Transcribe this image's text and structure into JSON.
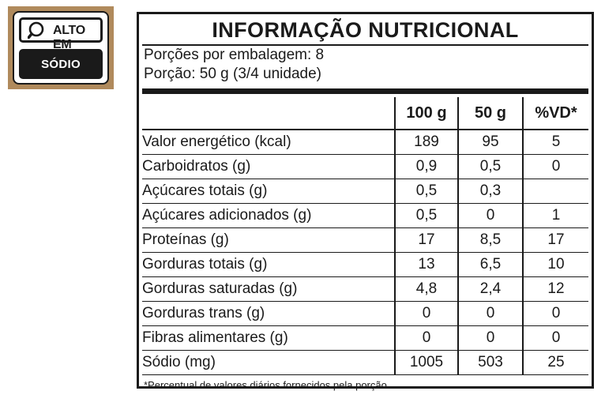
{
  "seal": {
    "top_text": "ALTO EM",
    "bottom_text": "SÓDIO",
    "frame_color": "#b08a5c",
    "icon": "magnifying-glass-icon"
  },
  "panel": {
    "title": "INFORMAÇÃO NUTRICIONAL",
    "servings_per_package": "Porções por embalagem: 8",
    "serving_size": "Porção: 50 g (3/4 unidade)",
    "columns": [
      "",
      "100 g",
      "50 g",
      "%VD*"
    ],
    "rows": [
      {
        "label": "Valor energético (kcal)",
        "per100": "189",
        "per50": "95",
        "vd": "5"
      },
      {
        "label": "Carboidratos (g)",
        "per100": "0,9",
        "per50": "0,5",
        "vd": "0"
      },
      {
        "label": "Açúcares totais (g)",
        "per100": "0,5",
        "per50": "0,3",
        "vd": ""
      },
      {
        "label": "Açúcares adicionados (g)",
        "per100": "0,5",
        "per50": "0",
        "vd": "1"
      },
      {
        "label": "Proteínas (g)",
        "per100": "17",
        "per50": "8,5",
        "vd": "17"
      },
      {
        "label": "Gorduras totais (g)",
        "per100": "13",
        "per50": "6,5",
        "vd": "10"
      },
      {
        "label": "Gorduras saturadas (g)",
        "per100": "4,8",
        "per50": "2,4",
        "vd": "12"
      },
      {
        "label": "Gorduras trans (g)",
        "per100": "0",
        "per50": "0",
        "vd": "0"
      },
      {
        "label": "Fibras alimentares (g)",
        "per100": "0",
        "per50": "0",
        "vd": "0"
      },
      {
        "label": "Sódio (mg)",
        "per100": "1005",
        "per50": "503",
        "vd": "25"
      }
    ],
    "footnote": "*Percentual de valores diários fornecidos pela porção."
  }
}
